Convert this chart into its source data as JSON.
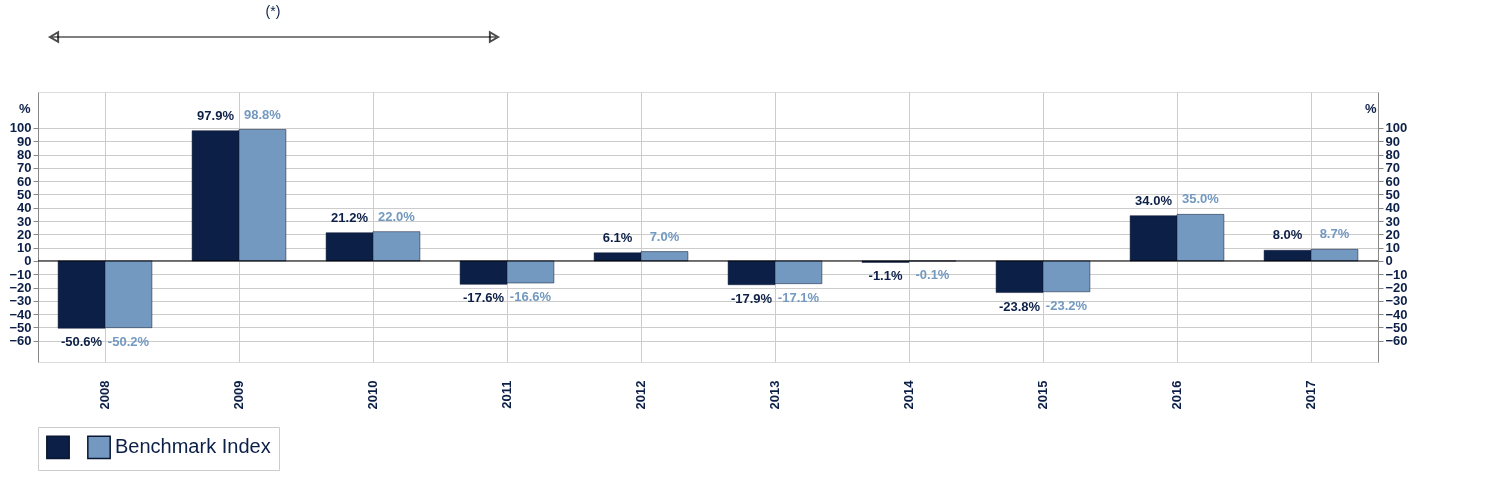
{
  "chart_data": {
    "type": "bar",
    "categories": [
      "2008",
      "2009",
      "2010",
      "2011",
      "2012",
      "2013",
      "2014",
      "2015",
      "2016",
      "2017"
    ],
    "series": [
      {
        "color": "#0c1f47",
        "values": [
          -50.6,
          97.9,
          21.2,
          -17.6,
          6.1,
          -17.9,
          -1.1,
          -23.8,
          34.0,
          8.0
        ],
        "value_labels": [
          "-50.6%",
          "97.9%",
          "21.2%",
          "-17.6%",
          "6.1%",
          "-17.9%",
          "-1.1%",
          "-23.8%",
          "34.0%",
          "8.0%"
        ]
      },
      {
        "name": "Benchmark Index",
        "color": "#7399c0",
        "values": [
          -50.2,
          98.8,
          22.0,
          -16.6,
          7.0,
          -17.1,
          -0.1,
          -23.2,
          35.0,
          8.7
        ],
        "value_labels": [
          "-50.2%",
          "98.8%",
          "22.0%",
          "-16.6%",
          "7.0%",
          "-17.1%",
          "-0.1%",
          "-23.2%",
          "35.0%",
          "8.7%"
        ]
      }
    ],
    "ylabel": "%",
    "y2label": "%",
    "ylim": [
      -76,
      127
    ],
    "yticks": [
      -60,
      -50,
      -40,
      -30,
      -20,
      -10,
      0,
      10,
      20,
      30,
      40,
      50,
      60,
      70,
      80,
      90,
      100
    ],
    "y2lim": [
      -76,
      127
    ],
    "y2ticks": [
      -60,
      -50,
      -40,
      -30,
      -20,
      -10,
      0,
      10,
      20,
      30,
      40,
      50,
      60,
      70,
      80,
      90,
      100
    ],
    "annotations": [
      "(*)"
    ],
    "grid": true,
    "legend": "bottom"
  }
}
